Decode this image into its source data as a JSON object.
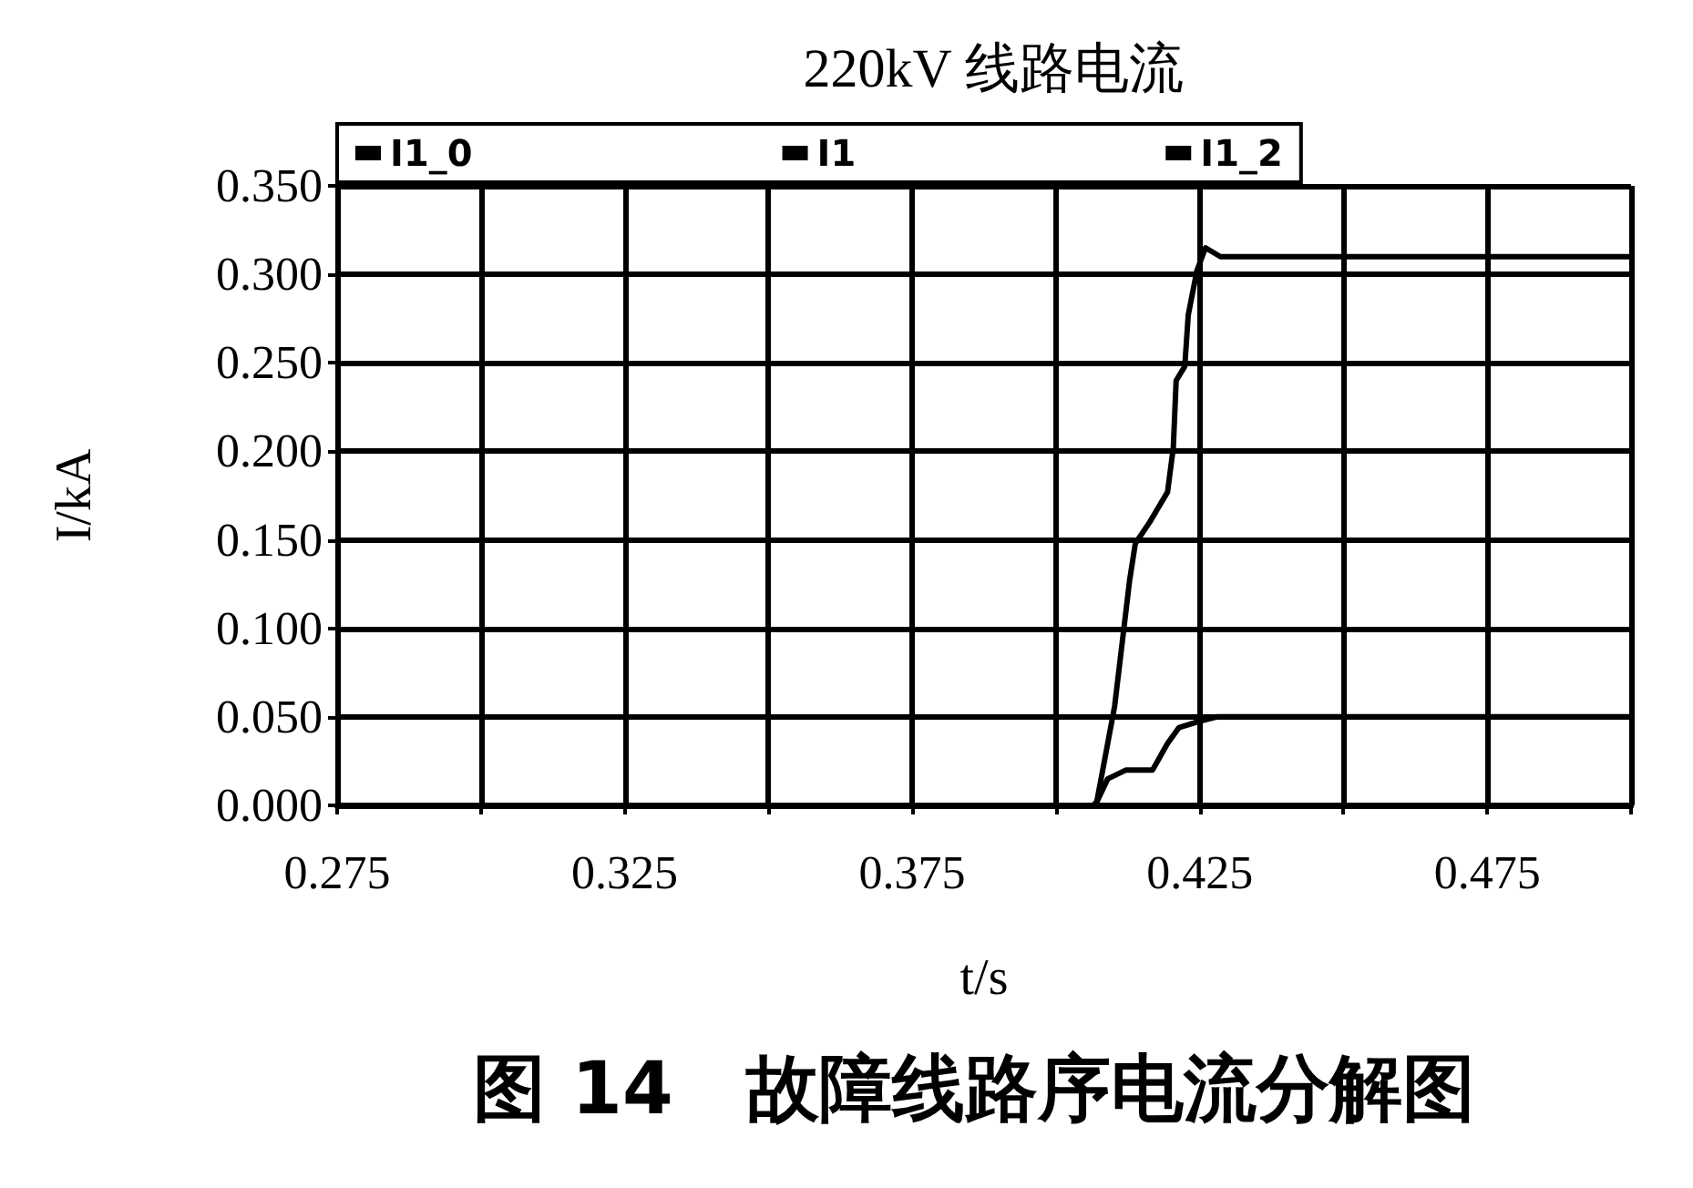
{
  "chart_data": {
    "type": "line",
    "title": "220kV 线路电流",
    "xlabel": "t/s",
    "ylabel": "I/kA",
    "annotations": [
      "图 14　故障线路序电流分解图"
    ],
    "series": [
      {
        "name": "I1_0",
        "color": "#000000",
        "x": [
          0.275,
          0.5
        ],
        "values": [
          0,
          0
        ]
      },
      {
        "name": "I1",
        "color": "#000000",
        "x": [
          0.4065,
          0.4071,
          0.4102,
          0.4128,
          0.4138,
          0.4163,
          0.4194,
          0.4204,
          0.4209,
          0.4224,
          0.423,
          0.4245,
          0.426,
          0.4286,
          0.5
        ],
        "values": [
          0,
          0.002,
          0.056,
          0.127,
          0.148,
          0.16,
          0.177,
          0.202,
          0.24,
          0.248,
          0.277,
          0.302,
          0.315,
          0.31,
          0.31
        ]
      },
      {
        "name": "I1_2",
        "color": "#000000",
        "x": [
          0.4065,
          0.4071,
          0.409,
          0.4122,
          0.4168,
          0.4194,
          0.4214,
          0.4255,
          0.428,
          0.5
        ],
        "values": [
          0,
          0.002,
          0.015,
          0.02,
          0.02,
          0.035,
          0.044,
          0.048,
          0.05,
          0.05
        ]
      }
    ],
    "xlim": [
      0.275,
      0.5
    ],
    "xticks": [
      0.275,
      {
        "value": 0.3,
        "label": null
      },
      0.325,
      {
        "value": 0.35,
        "label": null
      },
      0.375,
      {
        "value": 0.4,
        "label": null
      },
      0.425,
      {
        "value": 0.45,
        "label": null
      },
      0.475,
      {
        "value": 0.5,
        "label": null
      }
    ],
    "ylim": [
      0,
      0.35
    ],
    "yticks": [
      {
        "value": 0,
        "label": "0.000"
      },
      {
        "value": 0.05,
        "label": "0.050"
      },
      {
        "value": 0.1,
        "label": "0.100"
      },
      {
        "value": 0.15,
        "label": "0.150"
      },
      {
        "value": 0.2,
        "label": "0.200"
      },
      {
        "value": 0.25,
        "label": "0.250"
      },
      {
        "value": 0.3,
        "label": "0.300"
      },
      {
        "value": 0.35,
        "label": "0.350"
      }
    ],
    "grid": true,
    "legend": "top",
    "marker": "none",
    "line_style": "solid"
  }
}
